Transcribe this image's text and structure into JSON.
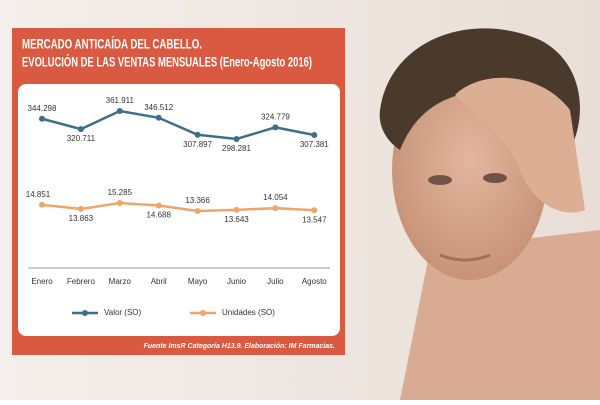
{
  "chart_data": {
    "type": "line",
    "title": "MERCADO ANTICAÍDA DEL CABELLO.",
    "subtitle": "EVOLUCIÓN DE LAS VENTAS MENSUALES (Enero-Agosto 2016)",
    "categories": [
      "Enero",
      "Febrero",
      "Marzo",
      "Abril",
      "Mayo",
      "Junio",
      "Julio",
      "Agosto"
    ],
    "series": [
      {
        "name": "Valor (SO)",
        "color": "#3f6f88",
        "values": [
          344.298,
          320.711,
          361.911,
          346.512,
          307.897,
          298.281,
          324.779,
          307.381
        ]
      },
      {
        "name": "Unidades (SO)",
        "color": "#f0a468",
        "values": [
          14.851,
          13.863,
          15.285,
          14.688,
          13.366,
          13.643,
          14.054,
          13.547
        ]
      }
    ],
    "source": "Fuente ImsR Categoría H13.9. Elaboración: IM Farmacias."
  }
}
